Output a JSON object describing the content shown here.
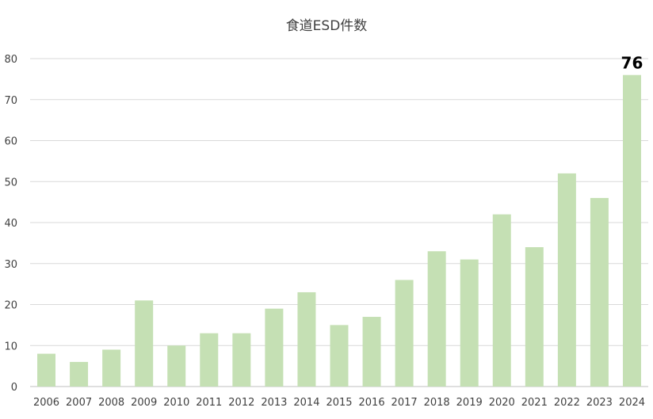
{
  "chart_data": {
    "type": "bar",
    "title": "食道ESD件数",
    "xlabel": "",
    "ylabel": "",
    "categories": [
      "2006",
      "2007",
      "2008",
      "2009",
      "2010",
      "2011",
      "2012",
      "2013",
      "2014",
      "2015",
      "2016",
      "2017",
      "2018",
      "2019",
      "2020",
      "2021",
      "2022",
      "2023",
      "2024"
    ],
    "values": [
      8,
      6,
      9,
      21,
      10,
      13,
      13,
      19,
      23,
      15,
      17,
      26,
      33,
      31,
      42,
      34,
      52,
      46,
      76
    ],
    "ylim": [
      0,
      80
    ],
    "yticks": [
      "0",
      "10",
      "20",
      "30",
      "40",
      "50",
      "60",
      "70",
      "80"
    ],
    "data_labels": [
      {
        "category": "2024",
        "text": "76"
      }
    ],
    "grid": true,
    "legend": "none",
    "bar_color": "#c5e0b4",
    "grid_color": "#d9d9d9"
  }
}
